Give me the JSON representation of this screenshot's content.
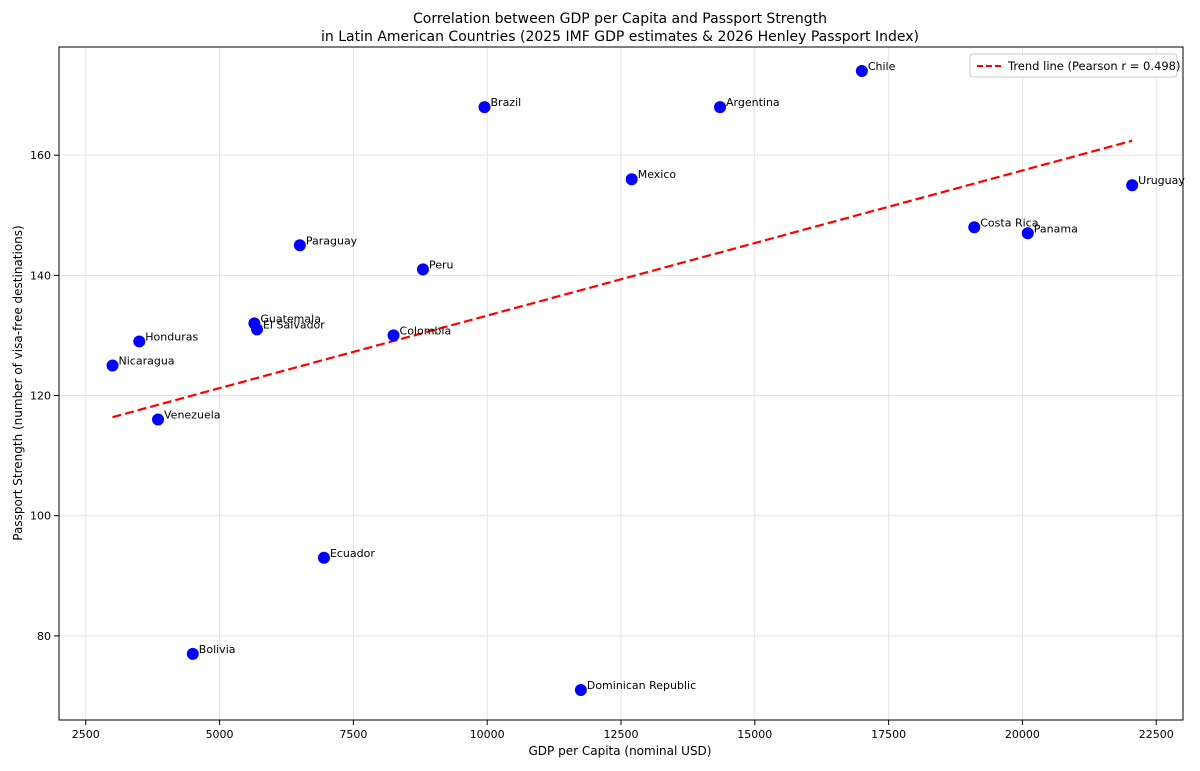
{
  "chart_data": {
    "type": "scatter",
    "title": [
      "Correlation between GDP per Capita and Passport Strength",
      "in Latin American Countries (2025 IMF GDP estimates & 2026 Henley Passport Index)"
    ],
    "xlabel": "GDP per Capita (nominal USD)",
    "ylabel": "Passport Strength (number of visa-free destinations)",
    "xlim": [
      2000,
      23000
    ],
    "ylim": [
      66,
      178
    ],
    "xticks": [
      2500,
      5000,
      7500,
      10000,
      12500,
      15000,
      17500,
      20000,
      22500
    ],
    "yticks": [
      80,
      100,
      120,
      140,
      160
    ],
    "grid": true,
    "legend": {
      "placement": "top-right",
      "label": "Trend line (Pearson r = 0.498)"
    },
    "points": [
      {
        "label": "Chile",
        "x": 17000,
        "y": 174
      },
      {
        "label": "Brazil",
        "x": 9950,
        "y": 168
      },
      {
        "label": "Argentina",
        "x": 14350,
        "y": 168
      },
      {
        "label": "Mexico",
        "x": 12700,
        "y": 156
      },
      {
        "label": "Uruguay",
        "x": 22050,
        "y": 155
      },
      {
        "label": "Costa Rica",
        "x": 19100,
        "y": 148
      },
      {
        "label": "Panama",
        "x": 20100,
        "y": 147
      },
      {
        "label": "Paraguay",
        "x": 6500,
        "y": 145
      },
      {
        "label": "Peru",
        "x": 8800,
        "y": 141
      },
      {
        "label": "Guatemala",
        "x": 5650,
        "y": 132
      },
      {
        "label": "El Salvador",
        "x": 5700,
        "y": 131
      },
      {
        "label": "Colombia",
        "x": 8250,
        "y": 130
      },
      {
        "label": "Honduras",
        "x": 3500,
        "y": 129
      },
      {
        "label": "Nicaragua",
        "x": 3000,
        "y": 125
      },
      {
        "label": "Venezuela",
        "x": 3850,
        "y": 116
      },
      {
        "label": "Ecuador",
        "x": 6950,
        "y": 93
      },
      {
        "label": "Bolivia",
        "x": 4500,
        "y": 77
      },
      {
        "label": "Dominican Republic",
        "x": 11750,
        "y": 71
      }
    ],
    "trend_line": {
      "x": [
        3000,
        22050
      ],
      "y": [
        116.4,
        162.4
      ]
    },
    "colors": {
      "points": "#0000ff",
      "trend": "#ff0000"
    }
  }
}
